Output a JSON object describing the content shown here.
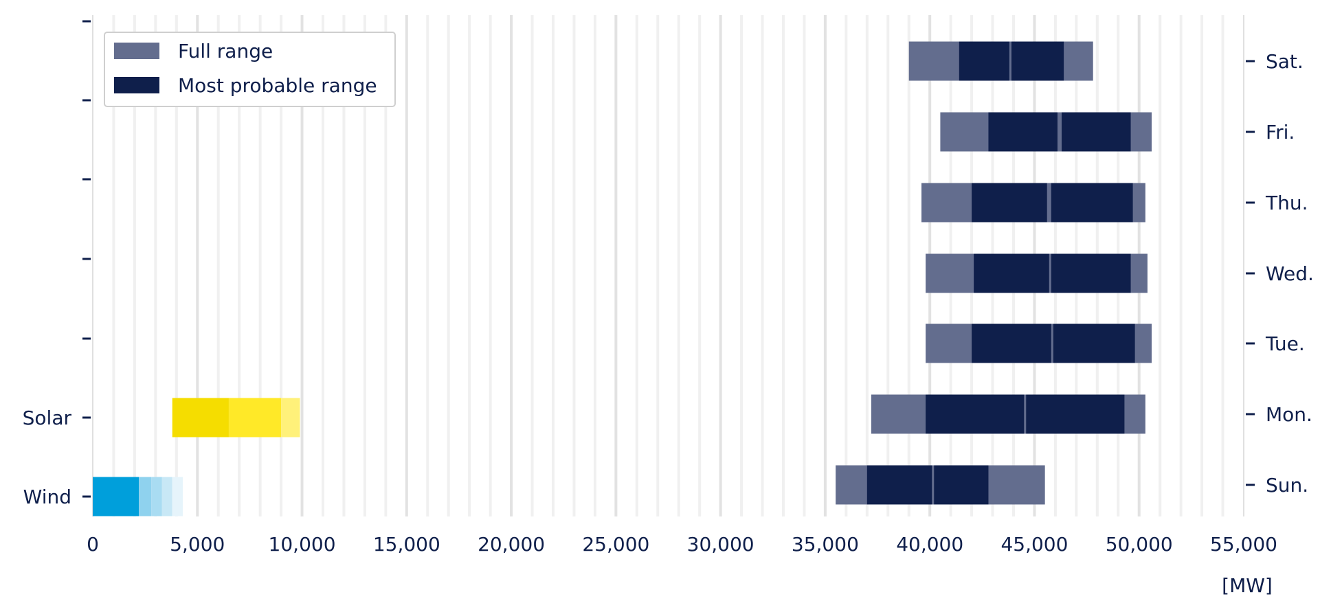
{
  "chart_data": {
    "type": "bar",
    "orientation": "horizontal-range",
    "xlabel": "[MW]",
    "xlim": [
      0,
      55000
    ],
    "xticks": [
      0,
      5000,
      10000,
      15000,
      20000,
      25000,
      30000,
      35000,
      40000,
      45000,
      50000,
      55000
    ],
    "xtick_labels": [
      "0",
      "5,000",
      "10,000",
      "15,000",
      "20,000",
      "25,000",
      "30,000",
      "35,000",
      "40,000",
      "45,000",
      "50,000",
      "55,000"
    ],
    "grid": "vertical",
    "legend": {
      "position": "top-left",
      "entries": [
        {
          "label": "Full range",
          "color": "#636d8e"
        },
        {
          "label": "Most probable range",
          "color": "#0f1f4b"
        }
      ]
    },
    "left_axis_labels": [
      "Wind",
      "Solar"
    ],
    "right_axis_labels": [
      "Sun.",
      "Mon.",
      "Tue.",
      "Wed.",
      "Thu.",
      "Fri.",
      "Sat."
    ],
    "renewables": [
      {
        "name": "Wind",
        "segments": [
          {
            "start": 0,
            "end": 2200,
            "color": "#009fdb"
          },
          {
            "start": 2200,
            "end": 2800,
            "color": "#8fd2ee"
          },
          {
            "start": 2800,
            "end": 3300,
            "color": "#a9dcf2"
          },
          {
            "start": 3300,
            "end": 3800,
            "color": "#c8e8f6"
          },
          {
            "start": 3800,
            "end": 4300,
            "color": "#e6f4fb"
          }
        ]
      },
      {
        "name": "Solar",
        "segments": [
          {
            "start": 3800,
            "end": 6500,
            "color": "#f5dd00"
          },
          {
            "start": 6500,
            "end": 9000,
            "color": "#ffe928"
          },
          {
            "start": 9000,
            "end": 9900,
            "color": "#fff17a"
          }
        ]
      }
    ],
    "days": [
      {
        "label": "Sun.",
        "full_range": [
          35500,
          45500
        ],
        "probable": [
          [
            37000,
            40100
          ],
          [
            40200,
            42800
          ]
        ]
      },
      {
        "label": "Mon.",
        "full_range": [
          37200,
          50300
        ],
        "probable": [
          [
            39800,
            44500
          ],
          [
            44600,
            49300
          ]
        ]
      },
      {
        "label": "Tue.",
        "full_range": [
          39800,
          50600
        ],
        "probable": [
          [
            42000,
            45800
          ],
          [
            45900,
            49800
          ]
        ]
      },
      {
        "label": "Wed.",
        "full_range": [
          39800,
          50400
        ],
        "probable": [
          [
            42100,
            45700
          ],
          [
            45800,
            49600
          ]
        ]
      },
      {
        "label": "Thu.",
        "full_range": [
          39600,
          50300
        ],
        "probable": [
          [
            42000,
            45600
          ],
          [
            45800,
            49700
          ]
        ]
      },
      {
        "label": "Fri.",
        "full_range": [
          40500,
          50600
        ],
        "probable": [
          [
            42800,
            46100
          ],
          [
            46300,
            49600
          ]
        ]
      },
      {
        "label": "Sat.",
        "full_range": [
          39000,
          47800
        ],
        "probable": [
          [
            41400,
            43800
          ],
          [
            43900,
            46400
          ]
        ]
      }
    ]
  }
}
